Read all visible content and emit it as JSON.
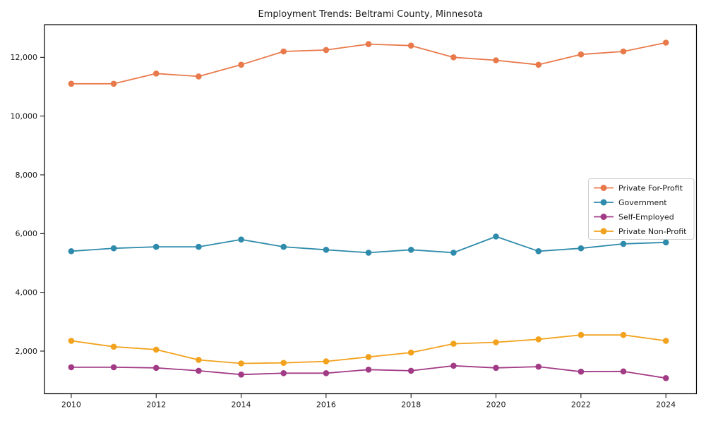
{
  "figure": {
    "background": "#ffffff",
    "text_color": "#1a1a1a",
    "spine_color": "#000000",
    "legend_border_color": "#cccccc"
  },
  "chart_data": {
    "type": "line",
    "title": "Employment Trends: Beltrami County, Minnesota",
    "xlabel": "",
    "ylabel": "",
    "x": [
      2010,
      2011,
      2012,
      2013,
      2014,
      2015,
      2016,
      2017,
      2018,
      2019,
      2020,
      2021,
      2022,
      2023,
      2024
    ],
    "series": [
      {
        "name": "Private For-Profit",
        "color": "#e8794a",
        "values": [
          11100,
          11100,
          11450,
          11350,
          11750,
          12200,
          12250,
          12450,
          12400,
          12000,
          11900,
          11750,
          12100,
          12200,
          12500
        ]
      },
      {
        "name": "Government",
        "color": "#2f8bab",
        "values": [
          5400,
          5500,
          5550,
          5550,
          5800,
          5550,
          5450,
          5350,
          5450,
          5350,
          5900,
          5400,
          5500,
          5650,
          5700
        ]
      },
      {
        "name": "Self-Employed",
        "color": "#a23b85",
        "values": [
          1450,
          1450,
          1430,
          1330,
          1200,
          1250,
          1250,
          1370,
          1330,
          1500,
          1430,
          1470,
          1300,
          1310,
          1080
        ]
      },
      {
        "name": "Private Non-Profit",
        "color": "#f2a21d",
        "values": [
          2350,
          2150,
          2050,
          1700,
          1580,
          1600,
          1650,
          1800,
          1950,
          2250,
          2300,
          2400,
          2550,
          2550,
          2350
        ]
      }
    ],
    "xticks": [
      {
        "v": 2010,
        "label": "2010"
      },
      {
        "v": 2012,
        "label": "2012"
      },
      {
        "v": 2014,
        "label": "2014"
      },
      {
        "v": 2016,
        "label": "2016"
      },
      {
        "v": 2018,
        "label": "2018"
      },
      {
        "v": 2020,
        "label": "2020"
      },
      {
        "v": 2022,
        "label": "2022"
      },
      {
        "v": 2024,
        "label": "2024"
      }
    ],
    "yticks": [
      {
        "v": 2000,
        "label": "2,000"
      },
      {
        "v": 4000,
        "label": "4,000"
      },
      {
        "v": 6000,
        "label": "6,000"
      },
      {
        "v": 8000,
        "label": "8,000"
      },
      {
        "v": 10000,
        "label": "10,000"
      },
      {
        "v": 12000,
        "label": "12,000"
      }
    ],
    "xlim": [
      2009.37,
      2024.72
    ],
    "ylim": [
      548,
      13112
    ],
    "grid": false,
    "legend": {
      "visible": true,
      "location": "center-right"
    }
  }
}
